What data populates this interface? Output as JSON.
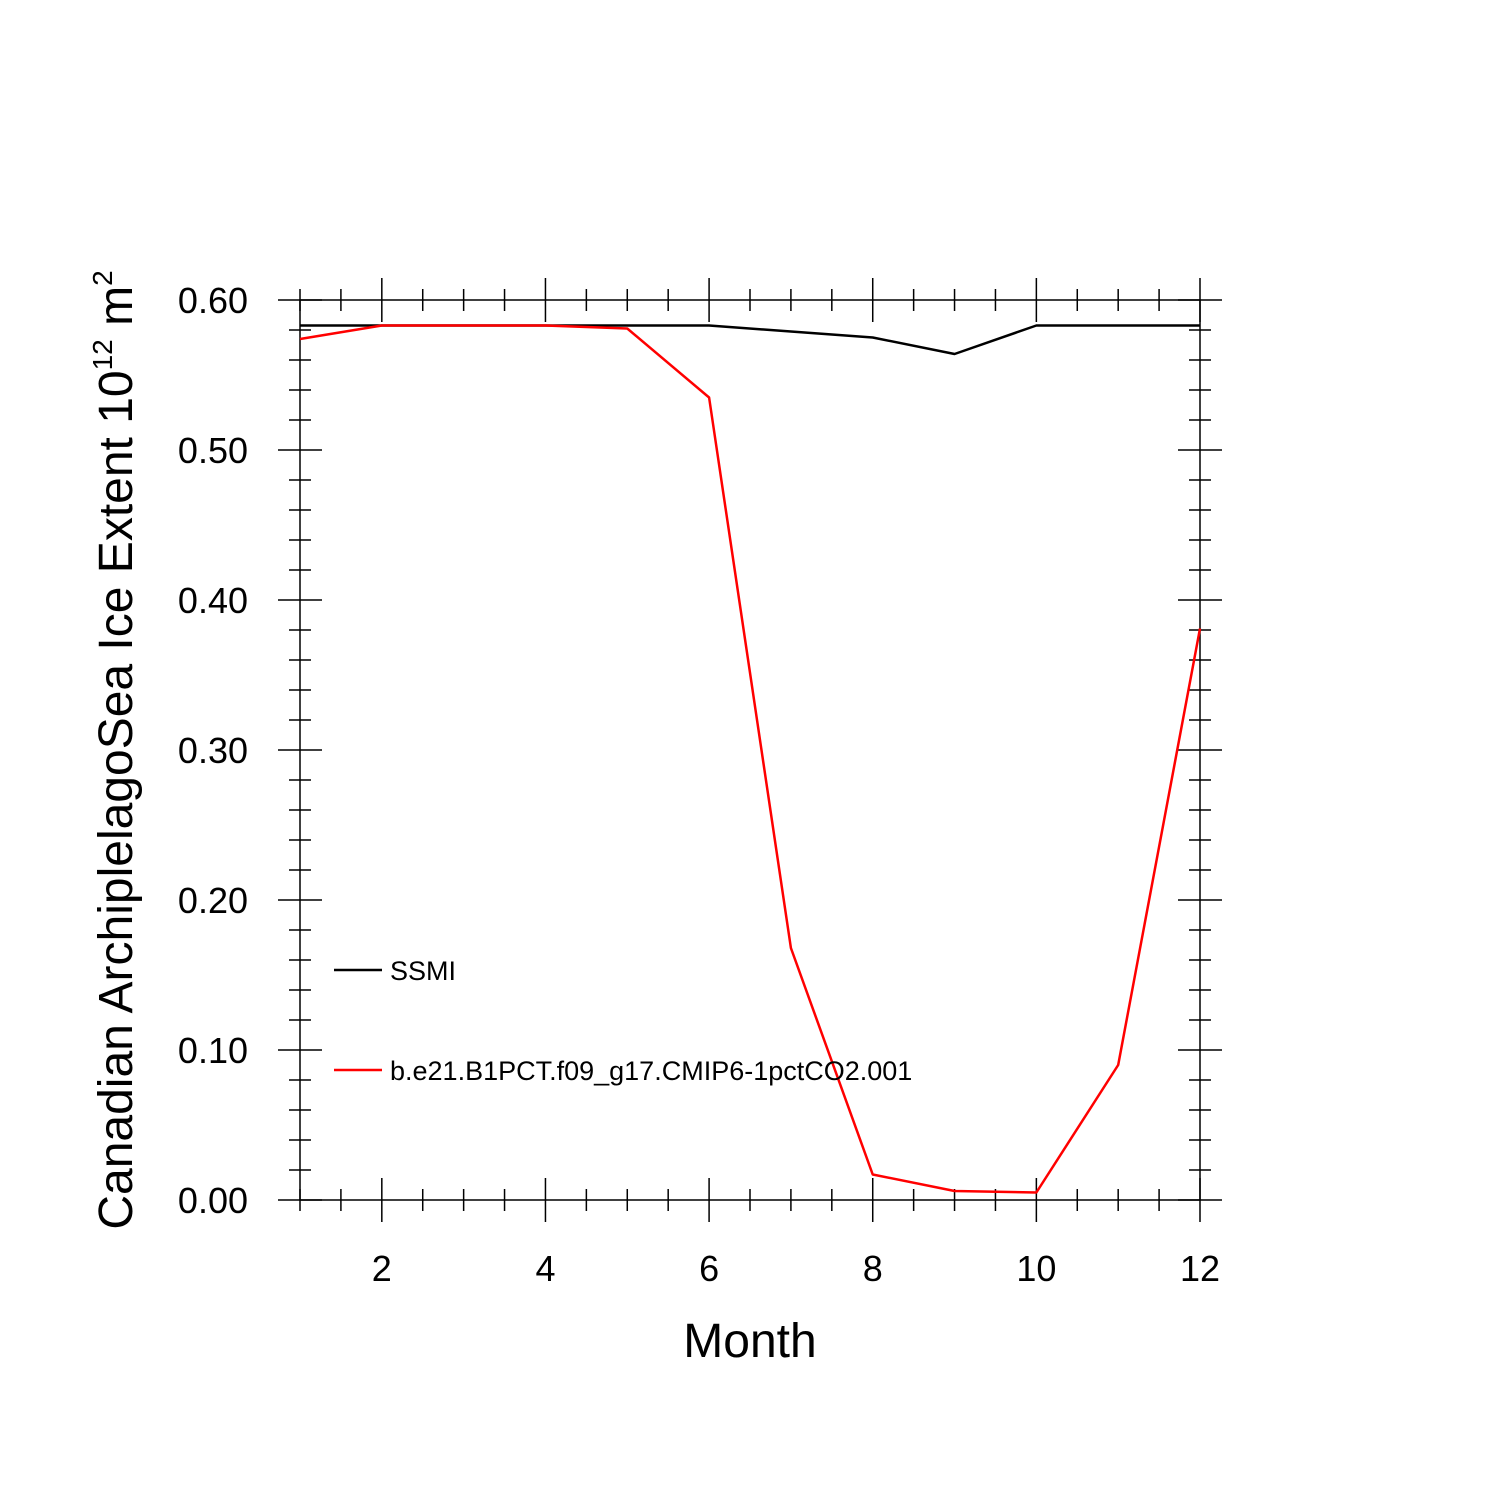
{
  "chart_data": {
    "type": "line",
    "title": "",
    "xlabel": "Month",
    "ylabel": {
      "prefix": "Canadian ArchiplelagoSea Ice Extent 10",
      "exponent": "12",
      "unit": " m",
      "unit_exponent": "2"
    },
    "xlim": [
      1,
      12
    ],
    "ylim": [
      0,
      0.6
    ],
    "x_ticks": [
      2,
      4,
      6,
      8,
      10,
      12
    ],
    "x_tick_labels": [
      "2",
      "4",
      "6",
      "8",
      "10",
      "12"
    ],
    "y_ticks": [
      0,
      0.1,
      0.2,
      0.3,
      0.4,
      0.5,
      0.6
    ],
    "y_tick_labels": [
      "0.00",
      "0.10",
      "0.20",
      "0.30",
      "0.40",
      "0.50",
      "0.60"
    ],
    "x": [
      1,
      2,
      3,
      4,
      5,
      6,
      7,
      8,
      9,
      10,
      11,
      12
    ],
    "series": [
      {
        "name": "SSMI",
        "color": "#000000",
        "values": [
          0.583,
          0.583,
          0.583,
          0.583,
          0.583,
          0.583,
          0.579,
          0.575,
          0.564,
          0.583,
          0.583,
          0.583
        ]
      },
      {
        "name": "b.e21.B1PCT.f09_g17.CMIP6-1pctCO2.001",
        "color": "#ff0000",
        "values": [
          0.574,
          0.583,
          0.583,
          0.583,
          0.581,
          0.535,
          0.168,
          0.017,
          0.006,
          0.005,
          0.09,
          0.381
        ]
      }
    ],
    "grid": false,
    "legend_position": "lower-left"
  }
}
